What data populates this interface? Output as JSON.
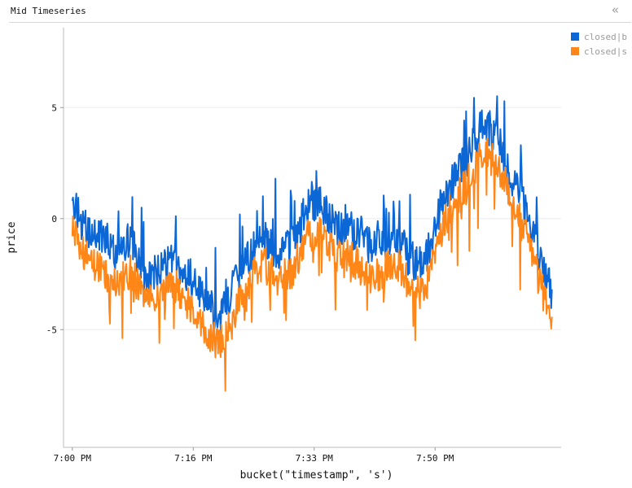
{
  "header": {
    "title": "Mid Timeseries",
    "collapse_icon": "double-chevron-left-icon"
  },
  "legend": {
    "items": [
      {
        "label": "closed|b",
        "color": "#0b66d6"
      },
      {
        "label": "closed|s",
        "color": "#ff8617"
      }
    ]
  },
  "chart_data": {
    "type": "line",
    "title": "Mid Timeseries",
    "xlabel": "bucket(\"timestamp\", 's')",
    "ylabel": "price",
    "x_ticks": [
      "7:00 PM",
      "7:16 PM",
      "7:33 PM",
      "7:50 PM"
    ],
    "x_tick_minutes": [
      0,
      16.5,
      33,
      49.5
    ],
    "x_range_minutes": [
      -1.2,
      66.7
    ],
    "ylim": [
      -10.3,
      8.6
    ],
    "y_ticks": [
      5,
      0,
      -5
    ],
    "grid": true,
    "legend_position": "top-right",
    "series": [
      {
        "name": "closed|b",
        "color": "#0b66d6",
        "x_minutes": [
          0,
          2,
          4,
          6,
          8,
          10,
          12,
          14,
          16,
          18,
          20,
          22,
          24,
          26,
          28,
          30,
          32,
          34,
          36,
          38,
          40,
          42,
          44,
          46,
          48,
          50,
          52,
          54,
          56,
          58,
          60,
          62,
          64,
          65.5
        ],
        "values": [
          0.8,
          -0.6,
          -0.9,
          -1.6,
          -0.9,
          -2.5,
          -2.4,
          -1.8,
          -2.7,
          -3.5,
          -4.5,
          -3.1,
          -1.7,
          -0.9,
          -1.6,
          -1.2,
          0.5,
          0.7,
          -0.4,
          -0.5,
          -1.2,
          -1.3,
          -0.6,
          -1.8,
          -2.2,
          0.3,
          1.8,
          2.8,
          4.3,
          3.7,
          1.9,
          0.3,
          -1.8,
          -3.4
        ]
      },
      {
        "name": "closed|s",
        "color": "#ff8617",
        "x_minutes": [
          0,
          2,
          4,
          6,
          8,
          10,
          12,
          14,
          16,
          18,
          20,
          22,
          24,
          26,
          28,
          30,
          32,
          34,
          36,
          38,
          40,
          42,
          44,
          46,
          48,
          50,
          52,
          54,
          56,
          58,
          60,
          62,
          64,
          65.5
        ],
        "values": [
          -0.6,
          -1.8,
          -2.2,
          -3.0,
          -2.3,
          -3.8,
          -3.6,
          -3.0,
          -4.0,
          -4.8,
          -5.8,
          -4.3,
          -2.9,
          -2.0,
          -2.7,
          -2.4,
          -0.8,
          -0.5,
          -1.6,
          -1.7,
          -2.5,
          -2.6,
          -1.8,
          -3.0,
          -3.5,
          -0.9,
          0.7,
          1.7,
          3.0,
          2.5,
          0.8,
          -0.9,
          -3.1,
          -4.8
        ]
      }
    ]
  }
}
